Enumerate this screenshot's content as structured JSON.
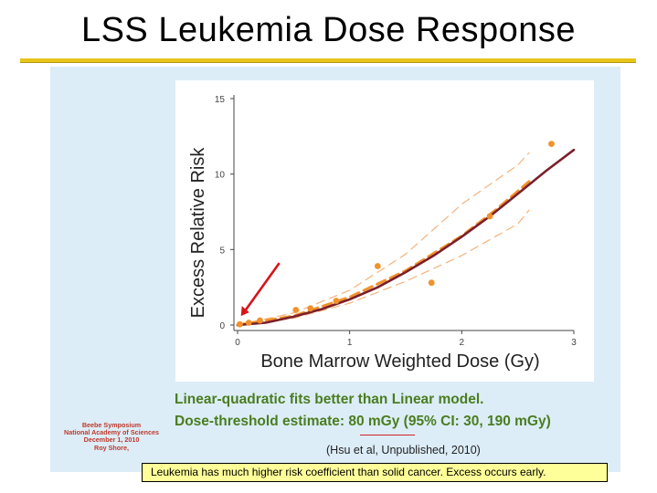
{
  "slide": {
    "title": "LSS Leukemia Dose Response",
    "notes": {
      "line1": "Linear-quadratic fits better than Linear model.",
      "line2": "Dose-threshold estimate:  80 mGy (95% CI: 30, 190 mGy)"
    },
    "citation": "(Hsu et al, Unpublished, 2010)",
    "symposium": {
      "line1": "Beebe Symposium",
      "line2": "National Academy of Sciences",
      "line3": "December 1, 2010",
      "line4": "Roy Shore,"
    },
    "footer": "Leukemia has much higher risk coefficient than solid cancer.  Excess occurs early."
  },
  "colors": {
    "title_rule": "#e7c51a",
    "panel_bg": "#dcedf8",
    "fit_curve": "#7b1f2b",
    "dashed_fit": "#f0922c",
    "ci_band": "#f5b27a",
    "points": "#f0922c",
    "arrow": "#d7141a",
    "note_text": "#4a7d1f",
    "footer_bg": "#ffff99"
  },
  "chart_data": {
    "type": "line",
    "xlabel": "Bone Marrow Weighted Dose (Gy)",
    "ylabel": "Excess Relative Risk",
    "xlim": [
      0,
      3
    ],
    "ylim": [
      0,
      15
    ],
    "xticks": [
      "0",
      "1",
      "2",
      "3"
    ],
    "yticks": [
      "0",
      "5",
      "10",
      "15"
    ],
    "grid": false,
    "series": [
      {
        "style": "solid",
        "x": [
          0,
          0.25,
          0.5,
          0.75,
          1.0,
          1.25,
          1.5,
          1.75,
          2.0,
          2.25,
          2.5,
          2.75,
          3.0
        ],
        "y": [
          0,
          0.15,
          0.55,
          1.05,
          1.7,
          2.5,
          3.5,
          4.6,
          5.85,
          7.2,
          8.7,
          10.2,
          11.6
        ]
      },
      {
        "style": "dashed",
        "x": [
          0,
          0.5,
          1.0,
          1.5,
          2.0,
          2.3,
          2.6
        ],
        "y": [
          0,
          0.6,
          1.85,
          3.6,
          5.9,
          7.6,
          9.5
        ]
      },
      {
        "style": "ci-upper",
        "x": [
          0,
          0.5,
          1.0,
          1.5,
          2.0,
          2.5,
          2.6
        ],
        "y": [
          0,
          0.8,
          2.3,
          4.7,
          8.0,
          10.6,
          11.4
        ]
      },
      {
        "style": "ci-lower",
        "x": [
          0,
          0.5,
          1.0,
          1.5,
          2.0,
          2.5,
          2.6
        ],
        "y": [
          0,
          0.45,
          1.45,
          2.9,
          4.6,
          6.7,
          7.6
        ]
      }
    ],
    "points": [
      {
        "x": 0.02,
        "y": 0.05
      },
      {
        "x": 0.1,
        "y": 0.15
      },
      {
        "x": 0.2,
        "y": 0.3
      },
      {
        "x": 0.52,
        "y": 1.0
      },
      {
        "x": 0.65,
        "y": 1.1
      },
      {
        "x": 0.88,
        "y": 1.6
      },
      {
        "x": 1.25,
        "y": 3.9
      },
      {
        "x": 1.73,
        "y": 2.8
      },
      {
        "x": 2.25,
        "y": 7.2
      },
      {
        "x": 2.8,
        "y": 12.0
      }
    ],
    "annotation": {
      "type": "arrow",
      "points_to_x": 0.03,
      "points_to_y": 0.6
    }
  }
}
